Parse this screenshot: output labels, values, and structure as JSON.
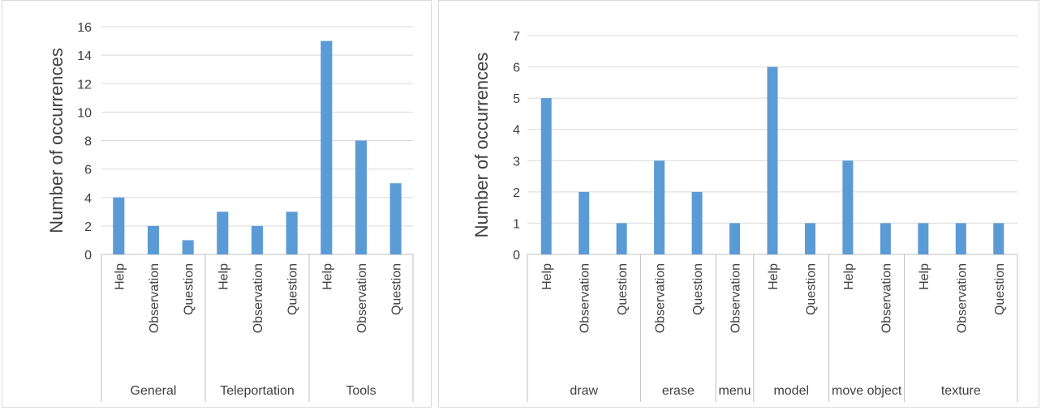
{
  "chart_data": [
    {
      "type": "bar",
      "ylabel": "Number of occurrences",
      "ylim": [
        0,
        16
      ],
      "yticks": [
        0,
        2,
        4,
        6,
        8,
        10,
        12,
        14,
        16
      ],
      "grid": true,
      "bar_color": "#5b9bd5",
      "groups": [
        {
          "name": "General",
          "categories": [
            "Help",
            "Observation",
            "Question"
          ],
          "values": [
            4,
            2,
            1
          ]
        },
        {
          "name": "Teleportation",
          "categories": [
            "Help",
            "Observation",
            "Question"
          ],
          "values": [
            3,
            2,
            3
          ]
        },
        {
          "name": "Tools",
          "categories": [
            "Help",
            "Observation",
            "Question"
          ],
          "values": [
            15,
            8,
            5
          ]
        }
      ]
    },
    {
      "type": "bar",
      "ylabel": "Number of occurrences",
      "ylim": [
        0,
        7
      ],
      "yticks": [
        0,
        1,
        2,
        3,
        4,
        5,
        6,
        7
      ],
      "grid": true,
      "bar_color": "#5b9bd5",
      "groups": [
        {
          "name": "draw",
          "categories": [
            "Help",
            "Observation",
            "Question"
          ],
          "values": [
            5,
            2,
            1
          ]
        },
        {
          "name": "erase",
          "categories": [
            "Observation",
            "Question"
          ],
          "values": [
            3,
            2
          ]
        },
        {
          "name": "menu",
          "categories": [
            "Observation"
          ],
          "values": [
            1
          ]
        },
        {
          "name": "model",
          "categories": [
            "Help",
            "Question"
          ],
          "values": [
            6,
            1
          ]
        },
        {
          "name": "move object",
          "categories": [
            "Help",
            "Observation"
          ],
          "values": [
            3,
            1
          ]
        },
        {
          "name": "texture",
          "categories": [
            "Help",
            "Observation",
            "Question"
          ],
          "values": [
            1,
            1,
            1
          ]
        }
      ]
    }
  ]
}
